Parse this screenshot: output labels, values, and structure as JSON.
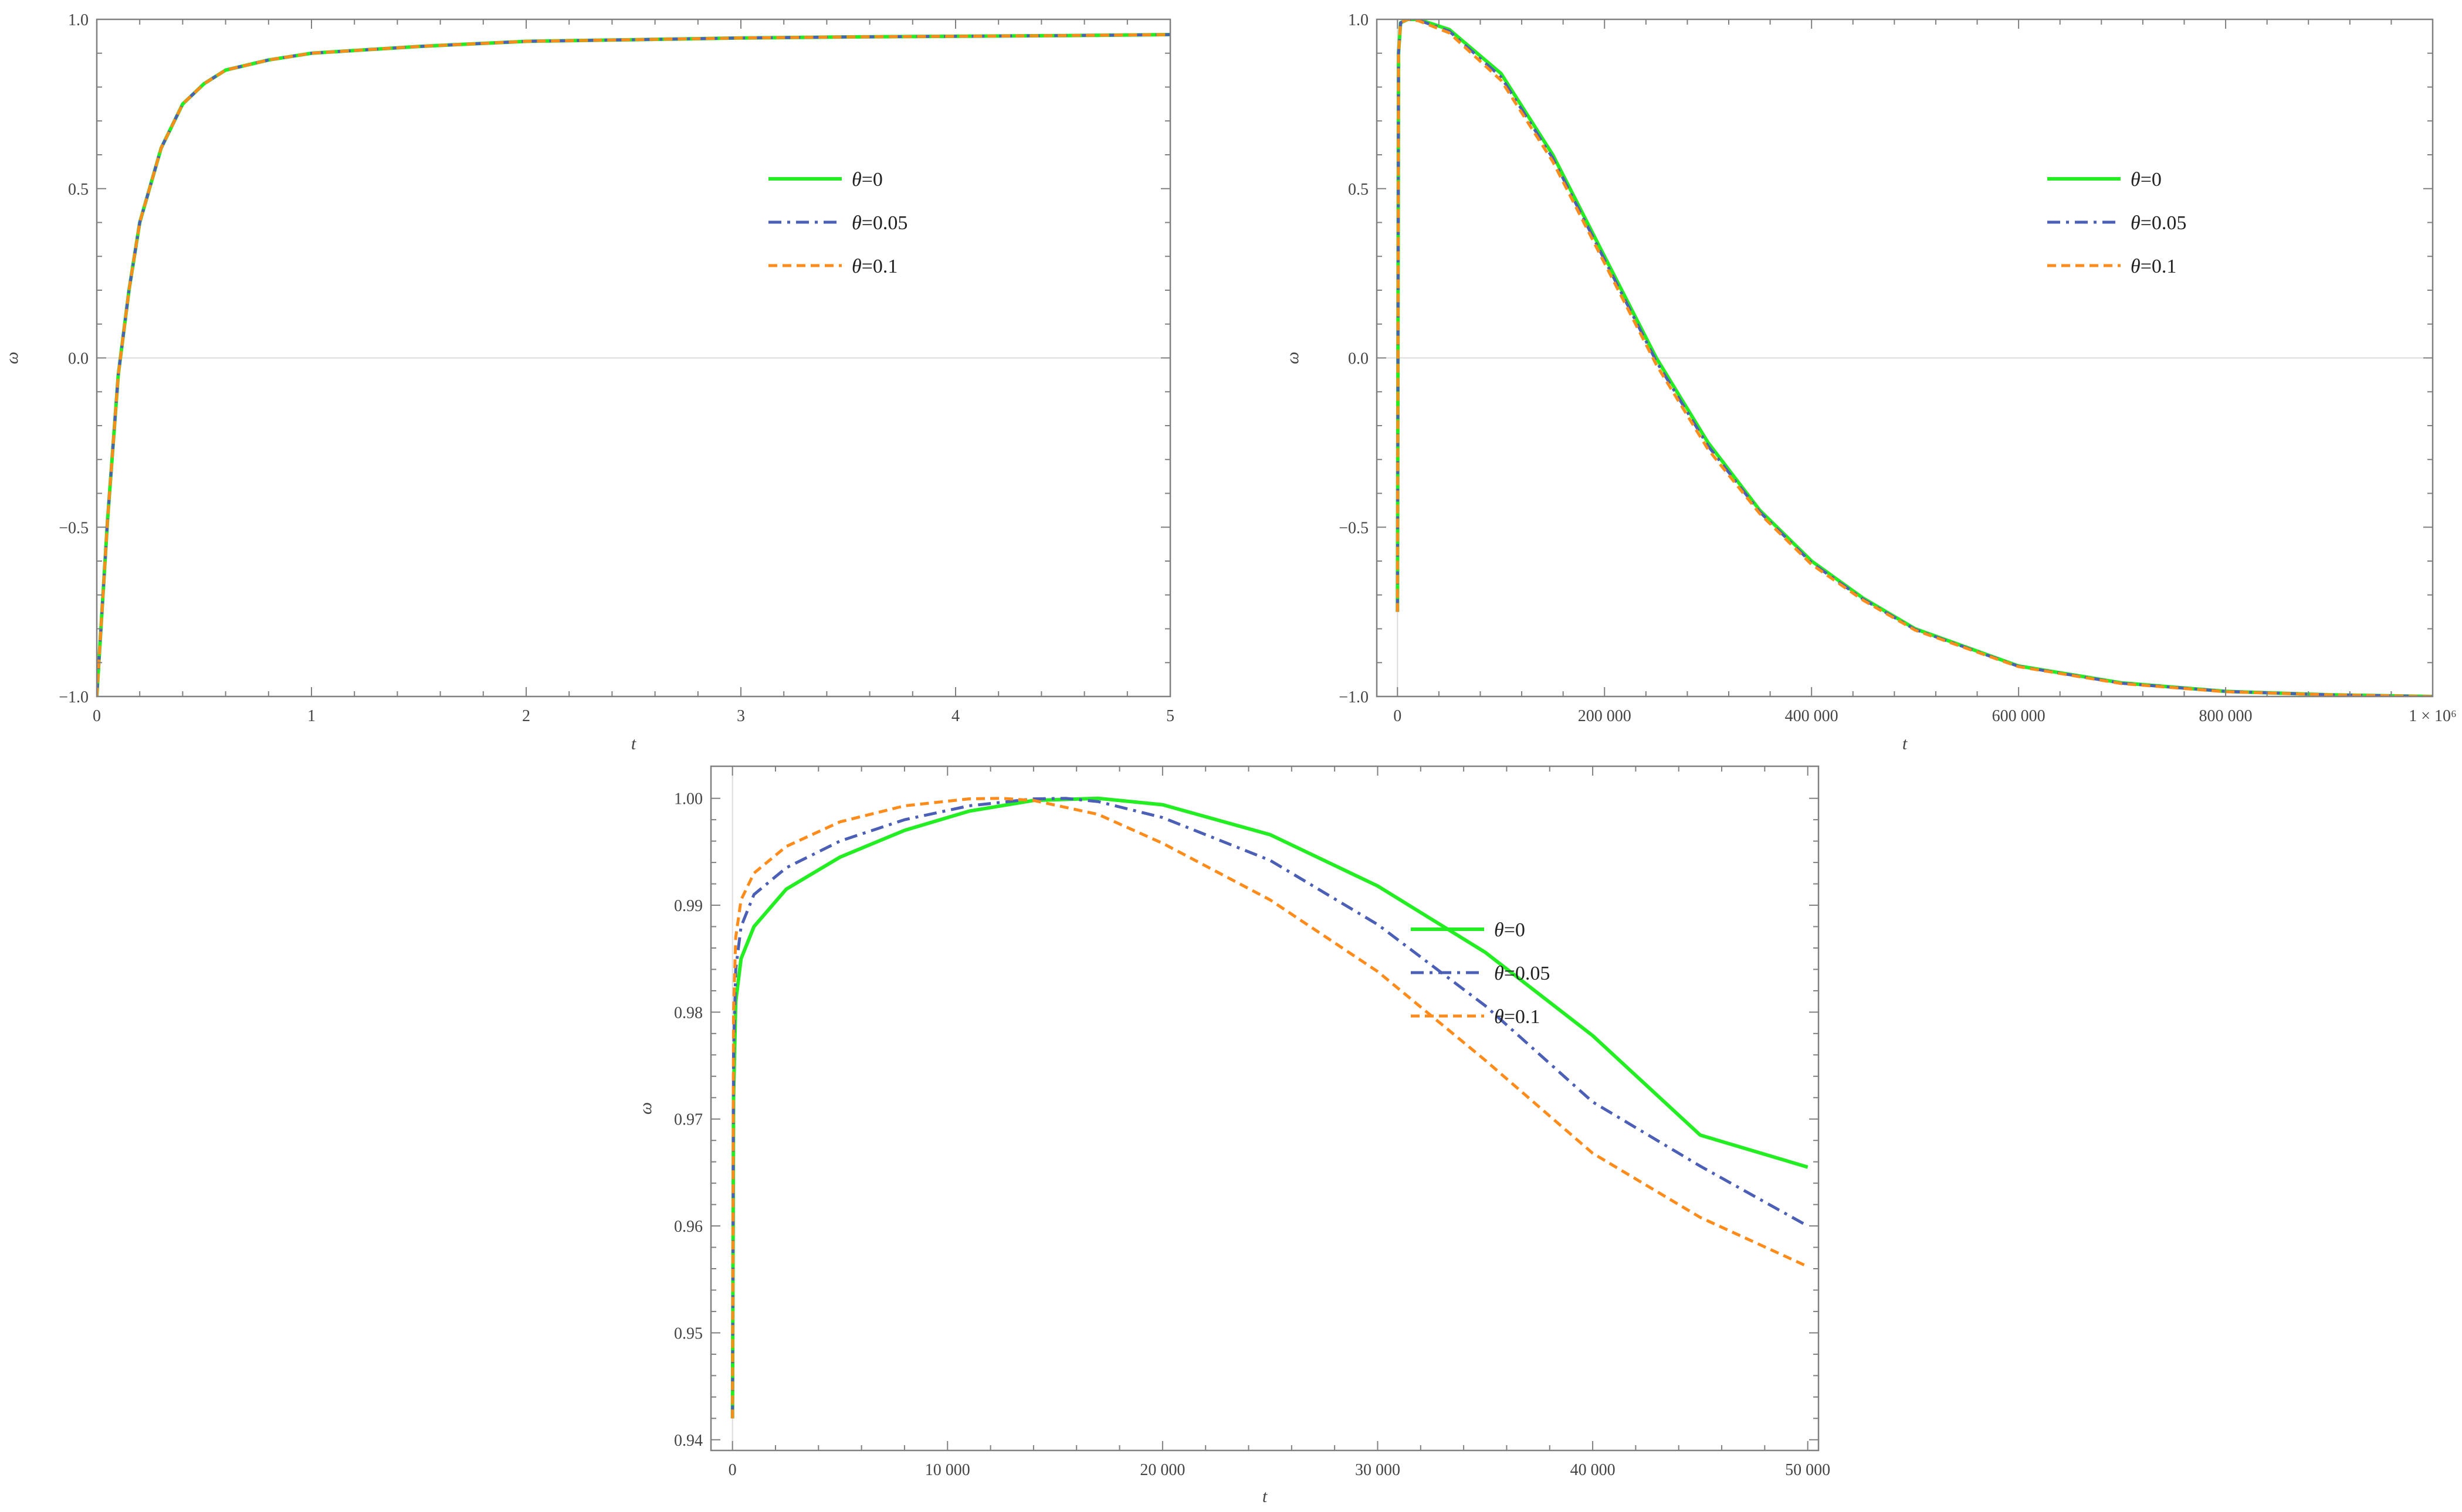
{
  "colors": {
    "series_0": "#22ee22",
    "series_1": "#4a5fb5",
    "series_2": "#ff8c1a",
    "frame": "#808080"
  },
  "chart_data": [
    {
      "type": "line",
      "xlabel": "t",
      "ylabel": "ω",
      "xlim": [
        0,
        5
      ],
      "ylim": [
        -1.0,
        1.0
      ],
      "x_ticks": [
        0,
        1,
        2,
        3,
        4,
        5
      ],
      "x_tick_labels": [
        "0",
        "1",
        "2",
        "3",
        "4",
        "5"
      ],
      "y_ticks": [
        -1.0,
        -0.5,
        0.0,
        0.5,
        1.0
      ],
      "y_tick_labels": [
        "−1.0",
        "−0.5",
        "0.0",
        "0.5",
        "1.0"
      ],
      "legend_position": "right",
      "series": [
        {
          "name": "θ=0",
          "style": "solid",
          "color": "#22ee22",
          "x": [
            0,
            0.05,
            0.1,
            0.15,
            0.2,
            0.3,
            0.4,
            0.5,
            0.6,
            0.8,
            1.0,
            1.5,
            2.0,
            2.5,
            3.0,
            3.5,
            4.0,
            4.5,
            5.0
          ],
          "y": [
            -1.0,
            -0.48,
            -0.05,
            0.2,
            0.4,
            0.62,
            0.75,
            0.81,
            0.85,
            0.88,
            0.9,
            0.92,
            0.935,
            0.94,
            0.945,
            0.948,
            0.95,
            0.952,
            0.955
          ]
        },
        {
          "name": "θ=0.05",
          "style": "dashdot",
          "color": "#4a5fb5",
          "x": [
            0,
            0.05,
            0.1,
            0.15,
            0.2,
            0.3,
            0.4,
            0.5,
            0.6,
            0.8,
            1.0,
            1.5,
            2.0,
            2.5,
            3.0,
            3.5,
            4.0,
            4.5,
            5.0
          ],
          "y": [
            -1.0,
            -0.48,
            -0.05,
            0.2,
            0.4,
            0.62,
            0.75,
            0.81,
            0.85,
            0.88,
            0.9,
            0.92,
            0.935,
            0.94,
            0.945,
            0.948,
            0.95,
            0.952,
            0.955
          ]
        },
        {
          "name": "θ=0.1",
          "style": "dashed",
          "color": "#ff8c1a",
          "x": [
            0,
            0.05,
            0.1,
            0.15,
            0.2,
            0.3,
            0.4,
            0.5,
            0.6,
            0.8,
            1.0,
            1.5,
            2.0,
            2.5,
            3.0,
            3.5,
            4.0,
            4.5,
            5.0
          ],
          "y": [
            -1.0,
            -0.48,
            -0.05,
            0.2,
            0.4,
            0.62,
            0.75,
            0.81,
            0.85,
            0.88,
            0.9,
            0.92,
            0.935,
            0.94,
            0.945,
            0.948,
            0.95,
            0.952,
            0.955
          ]
        }
      ]
    },
    {
      "type": "line",
      "xlabel": "t",
      "ylabel": "ω",
      "xlim": [
        -20000,
        1000000
      ],
      "ylim": [
        -1.0,
        1.0
      ],
      "x_ticks": [
        0,
        200000,
        400000,
        600000,
        800000,
        1000000
      ],
      "x_tick_labels": [
        "0",
        "200 000",
        "400 000",
        "600 000",
        "800 000",
        "1 × 10⁶"
      ],
      "y_ticks": [
        -1.0,
        -0.5,
        0.0,
        0.5,
        1.0
      ],
      "y_tick_labels": [
        "−1.0",
        "−0.5",
        "0.0",
        "0.5",
        "1.0"
      ],
      "legend_position": "right",
      "series": [
        {
          "name": "θ=0",
          "style": "solid",
          "color": "#22ee22",
          "x": [
            0,
            1000,
            3000,
            10000,
            20000,
            50000,
            100000,
            150000,
            200000,
            250000,
            300000,
            350000,
            400000,
            450000,
            500000,
            600000,
            700000,
            800000,
            900000,
            1000000
          ],
          "y": [
            -0.75,
            0.9,
            0.99,
            1.0,
            1.0,
            0.97,
            0.84,
            0.6,
            0.3,
            0.0,
            -0.25,
            -0.45,
            -0.6,
            -0.71,
            -0.8,
            -0.91,
            -0.96,
            -0.985,
            -0.995,
            -1.0
          ]
        },
        {
          "name": "θ=0.05",
          "style": "dashdot",
          "color": "#4a5fb5",
          "x": [
            0,
            1000,
            3000,
            10000,
            20000,
            50000,
            100000,
            150000,
            200000,
            250000,
            300000,
            350000,
            400000,
            450000,
            500000,
            600000,
            700000,
            800000,
            900000,
            1000000
          ],
          "y": [
            -0.75,
            0.9,
            0.99,
            1.0,
            0.998,
            0.965,
            0.83,
            0.59,
            0.29,
            -0.01,
            -0.26,
            -0.455,
            -0.605,
            -0.713,
            -0.802,
            -0.911,
            -0.961,
            -0.985,
            -0.995,
            -1.0
          ]
        },
        {
          "name": "θ=0.1",
          "style": "dashed",
          "color": "#ff8c1a",
          "x": [
            0,
            1000,
            3000,
            10000,
            20000,
            50000,
            100000,
            150000,
            200000,
            250000,
            300000,
            350000,
            400000,
            450000,
            500000,
            600000,
            700000,
            800000,
            900000,
            1000000
          ],
          "y": [
            -0.75,
            0.9,
            0.99,
            1.0,
            0.996,
            0.96,
            0.82,
            0.58,
            0.28,
            -0.02,
            -0.27,
            -0.46,
            -0.61,
            -0.716,
            -0.804,
            -0.912,
            -0.962,
            -0.986,
            -0.995,
            -1.0
          ]
        }
      ]
    },
    {
      "type": "line",
      "xlabel": "t",
      "ylabel": "ω",
      "xlim": [
        -1000,
        50500
      ],
      "ylim": [
        0.939,
        1.003
      ],
      "x_ticks": [
        0,
        10000,
        20000,
        30000,
        40000,
        50000
      ],
      "x_tick_labels": [
        "0",
        "10 000",
        "20 000",
        "30 000",
        "40 000",
        "50 000"
      ],
      "y_ticks": [
        0.94,
        0.95,
        0.96,
        0.97,
        0.98,
        0.99,
        1.0
      ],
      "y_tick_labels": [
        "0.94",
        "0.95",
        "0.96",
        "0.97",
        "0.98",
        "0.99",
        "1.00"
      ],
      "legend_position": "center-right",
      "series": [
        {
          "name": "θ=0",
          "style": "solid",
          "color": "#22ee22",
          "x": [
            0,
            50,
            150,
            400,
            1000,
            2500,
            5000,
            8000,
            11000,
            14000,
            17000,
            20000,
            25000,
            30000,
            35000,
            40000,
            45000,
            50000
          ],
          "y": [
            0.942,
            0.972,
            0.981,
            0.985,
            0.988,
            0.9915,
            0.9945,
            0.997,
            0.9988,
            0.9998,
            1.0,
            0.9994,
            0.9966,
            0.9918,
            0.9856,
            0.9778,
            0.9685,
            0.9655
          ]
        },
        {
          "name": "θ=0.05",
          "style": "dashdot",
          "color": "#4a5fb5",
          "x": [
            0,
            50,
            150,
            400,
            1000,
            2500,
            5000,
            8000,
            11000,
            14000,
            15500,
            17000,
            20000,
            25000,
            30000,
            35000,
            40000,
            45000,
            50000
          ],
          "y": [
            0.942,
            0.976,
            0.984,
            0.988,
            0.991,
            0.9935,
            0.996,
            0.998,
            0.9993,
            0.99995,
            1.0,
            0.9997,
            0.9982,
            0.9942,
            0.9882,
            0.9806,
            0.9716,
            0.9656,
            0.96
          ]
        },
        {
          "name": "θ=0.1",
          "style": "dashed",
          "color": "#ff8c1a",
          "x": [
            0,
            50,
            150,
            400,
            1000,
            2500,
            5000,
            8000,
            11000,
            12500,
            14000,
            17000,
            20000,
            25000,
            30000,
            35000,
            40000,
            45000,
            50000
          ],
          "y": [
            0.942,
            0.98,
            0.987,
            0.9905,
            0.993,
            0.9955,
            0.9978,
            0.9993,
            0.99995,
            1.0,
            0.9998,
            0.9985,
            0.9958,
            0.9905,
            0.9838,
            0.9755,
            0.9668,
            0.9608,
            0.9562
          ]
        }
      ]
    }
  ]
}
